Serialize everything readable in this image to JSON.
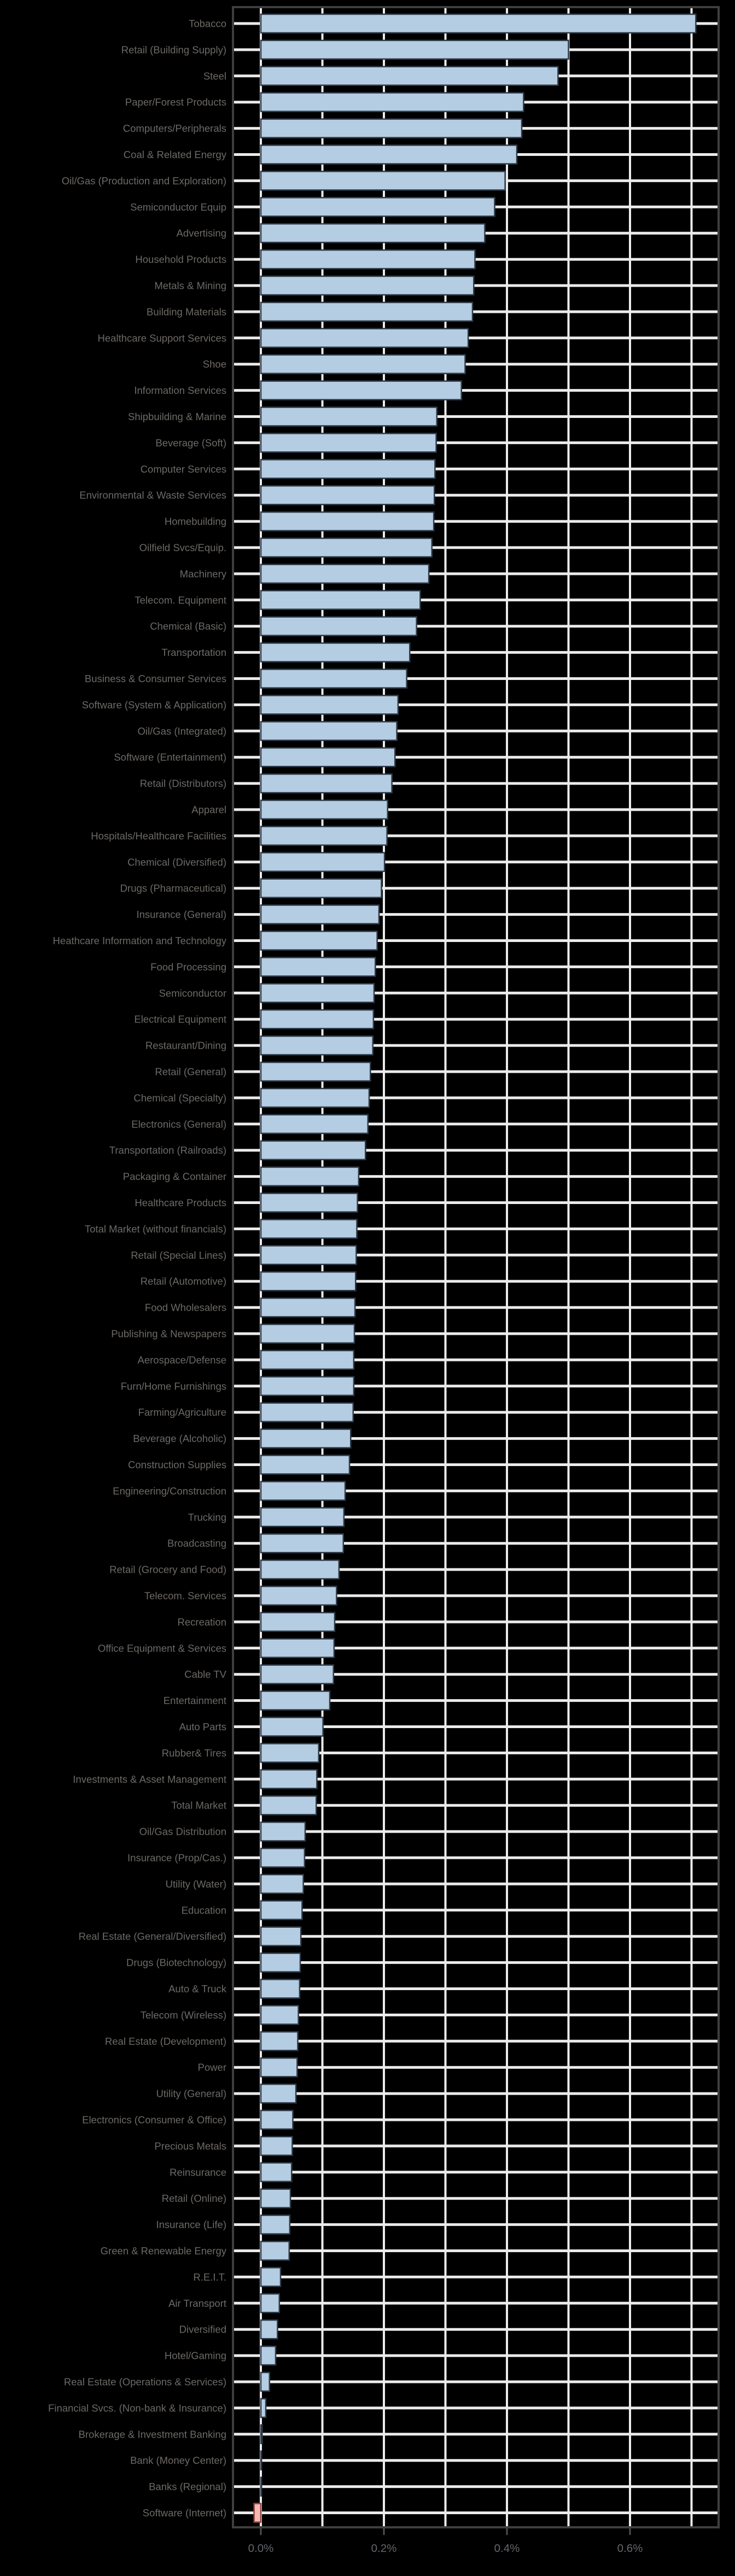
{
  "chart_data": {
    "type": "bar",
    "orientation": "horizontal",
    "title": "",
    "subtitle": "",
    "xlabel": "",
    "ylabel": "",
    "legend_position": "none",
    "grid": "on",
    "x_axis": {
      "tick_labels": [
        "0.0%",
        "0.2%",
        "0.4%",
        "0.6%"
      ],
      "tick_values": [
        0.0,
        0.2,
        0.4,
        0.6
      ],
      "gridline_step": 0.1,
      "min": -0.045,
      "max": 0.745,
      "unit": "percent"
    },
    "categories": [
      "Tobacco",
      "Retail (Building Supply)",
      "Steel",
      "Paper/Forest Products",
      "Computers/Peripherals",
      "Coal & Related Energy",
      "Oil/Gas (Production and Exploration)",
      "Semiconductor Equip",
      "Advertising",
      "Household Products",
      "Metals & Mining",
      "Building Materials",
      "Healthcare Support Services",
      "Shoe",
      "Information Services",
      "Shipbuilding & Marine",
      "Beverage (Soft)",
      "Computer Services",
      "Environmental & Waste Services",
      "Homebuilding",
      "Oilfield Svcs/Equip.",
      "Machinery",
      "Telecom. Equipment",
      "Chemical (Basic)",
      "Transportation",
      "Business & Consumer Services",
      "Software (System & Application)",
      "Oil/Gas (Integrated)",
      "Software (Entertainment)",
      "Retail (Distributors)",
      "Apparel",
      "Hospitals/Healthcare Facilities",
      "Chemical (Diversified)",
      "Drugs (Pharmaceutical)",
      "Insurance (General)",
      "Heathcare Information and Technology",
      "Food Processing",
      "Semiconductor",
      "Electrical Equipment",
      "Restaurant/Dining",
      "Retail (General)",
      "Chemical (Specialty)",
      "Electronics (General)",
      "Transportation (Railroads)",
      "Packaging & Container",
      "Healthcare Products",
      "Total Market (without financials)",
      "Retail (Special Lines)",
      "Retail (Automotive)",
      "Food Wholesalers",
      "Publishing & Newspapers",
      "Aerospace/Defense",
      "Furn/Home Furnishings",
      "Farming/Agriculture",
      "Beverage (Alcoholic)",
      "Construction Supplies",
      "Engineering/Construction",
      "Trucking",
      "Broadcasting",
      "Retail (Grocery and Food)",
      "Telecom. Services",
      "Recreation",
      "Office Equipment & Services",
      "Cable TV",
      "Entertainment",
      "Auto Parts",
      "Rubber& Tires",
      "Investments & Asset Management",
      "Total Market",
      "Oil/Gas Distribution",
      "Insurance (Prop/Cas.)",
      "Utility (Water)",
      "Education",
      "Real Estate (General/Diversified)",
      "Drugs (Biotechnology)",
      "Auto & Truck",
      "Telecom (Wireless)",
      "Real Estate (Development)",
      "Power",
      "Utility (General)",
      "Electronics (Consumer & Office)",
      "Precious Metals",
      "Reinsurance",
      "Retail (Online)",
      "Insurance (Life)",
      "Green & Renewable Energy",
      "R.E.I.T.",
      "Air Transport",
      "Diversified",
      "Hotel/Gaming",
      "Real Estate (Operations & Services)",
      "Financial Svcs. (Non-bank & Insurance)",
      "Brokerage & Investment Banking",
      "Bank (Money Center)",
      "Banks (Regional)",
      "Software (Internet)"
    ],
    "values": [
      0.707,
      0.5,
      0.483,
      0.427,
      0.424,
      0.416,
      0.397,
      0.38,
      0.364,
      0.348,
      0.346,
      0.344,
      0.337,
      0.332,
      0.326,
      0.286,
      0.285,
      0.283,
      0.282,
      0.281,
      0.278,
      0.273,
      0.259,
      0.253,
      0.242,
      0.237,
      0.223,
      0.221,
      0.218,
      0.213,
      0.206,
      0.205,
      0.201,
      0.196,
      0.192,
      0.189,
      0.186,
      0.184,
      0.183,
      0.182,
      0.178,
      0.176,
      0.174,
      0.17,
      0.159,
      0.157,
      0.156,
      0.155,
      0.154,
      0.153,
      0.152,
      0.151,
      0.151,
      0.15,
      0.146,
      0.144,
      0.137,
      0.135,
      0.134,
      0.127,
      0.123,
      0.12,
      0.119,
      0.118,
      0.112,
      0.101,
      0.094,
      0.091,
      0.09,
      0.072,
      0.071,
      0.069,
      0.067,
      0.065,
      0.064,
      0.063,
      0.061,
      0.06,
      0.059,
      0.057,
      0.052,
      0.051,
      0.05,
      0.048,
      0.047,
      0.046,
      0.032,
      0.03,
      0.027,
      0.024,
      0.014,
      0.008,
      0.002,
      0.001,
      0.001,
      -0.011
    ],
    "colors": {
      "background": "#000000",
      "bar_fill": "#b5cde2",
      "bar_stroke": "#2f3b49",
      "negative_bar_fill": "#f5b8b2",
      "negative_bar_stroke": "#8f4640",
      "gridline": "#ebebeb",
      "axis_border": "#3f3f3f",
      "tick_mark": "#4f4f4f",
      "category_label_text": "#6d6a66",
      "axis_tick_text": "#63666b"
    }
  }
}
